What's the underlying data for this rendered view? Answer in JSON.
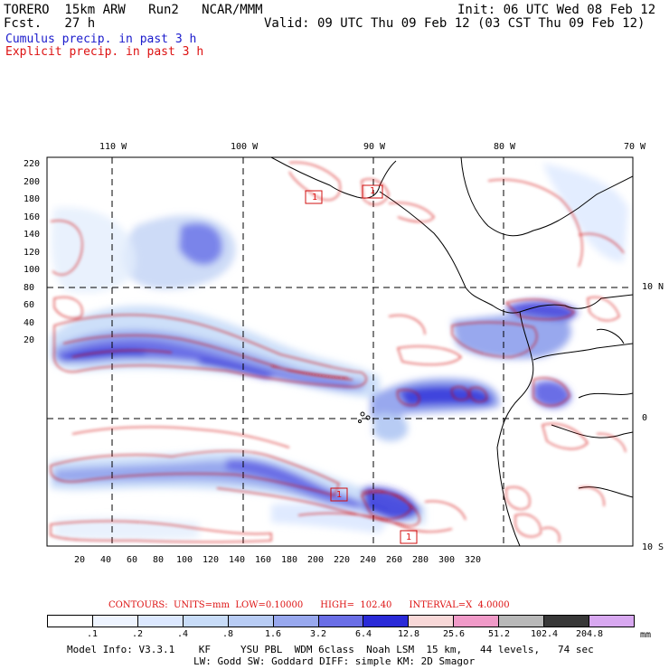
{
  "header": {
    "left_line1": "TORERO  15km ARW   Run2   NCAR/MMM",
    "left_line2": "Fcst.   27 h",
    "right_line1": "Init: 06 UTC Wed 08 Feb 12",
    "right_line2": "Valid: 09 UTC Thu 09 Feb 12 (03 CST Thu 09 Feb 12)",
    "cumulus_label": "Cumulus precip. in past 3 h",
    "explicit_label": "Explicit precip. in past 3 h"
  },
  "colors": {
    "cumulus": "#1a1acc",
    "explicit": "#d11111",
    "grid": "#000000"
  },
  "map": {
    "lon_labels": [
      "110 W",
      "100 W",
      "90 W",
      "80 W",
      "70 W"
    ],
    "lat_labels": [
      "10 N",
      "0",
      "10 S"
    ],
    "y_ticks": [
      "220",
      "200",
      "180",
      "160",
      "140",
      "120",
      "100",
      "80",
      "60",
      "40",
      "20"
    ],
    "x_ticks": [
      "20",
      "40",
      "60",
      "80",
      "100",
      "120",
      "140",
      "160",
      "180",
      "200",
      "220",
      "240",
      "260",
      "280",
      "300",
      "320"
    ],
    "station_markers": [
      "1",
      "1",
      "1",
      "1"
    ]
  },
  "contours_line": {
    "prefix": "CONTOURS:  UNITS=mm  LOW=",
    "low": "0.10000",
    "high_label": "HIGH=",
    "high": "102.40",
    "interval_label": "INTERVAL=X",
    "interval": "4.0000"
  },
  "legend": {
    "colors": [
      "#ffffff",
      "#eef4ff",
      "#dce8ff",
      "#c8dcf8",
      "#b8ccf4",
      "#98a8ee",
      "#6a6ee6",
      "#2a2ad8",
      "#f8d8d8",
      "#f09ac8",
      "#b8b8b8",
      "#383838",
      "#d8a8f0"
    ],
    "labels": [
      ".1",
      ".2",
      ".4",
      ".8",
      "1.6",
      "3.2",
      "6.4",
      "12.8",
      "25.6",
      "51.2",
      "102.4",
      "204.8"
    ],
    "unit": "mm"
  },
  "footer": {
    "line1": "Model Info: V3.3.1    KF     YSU PBL  WDM 6class  Noah LSM  15 km,   44 levels,   74 sec",
    "line2": "LW: Godd SW: Goddard DIFF: simple KM: 2D Smagor"
  }
}
